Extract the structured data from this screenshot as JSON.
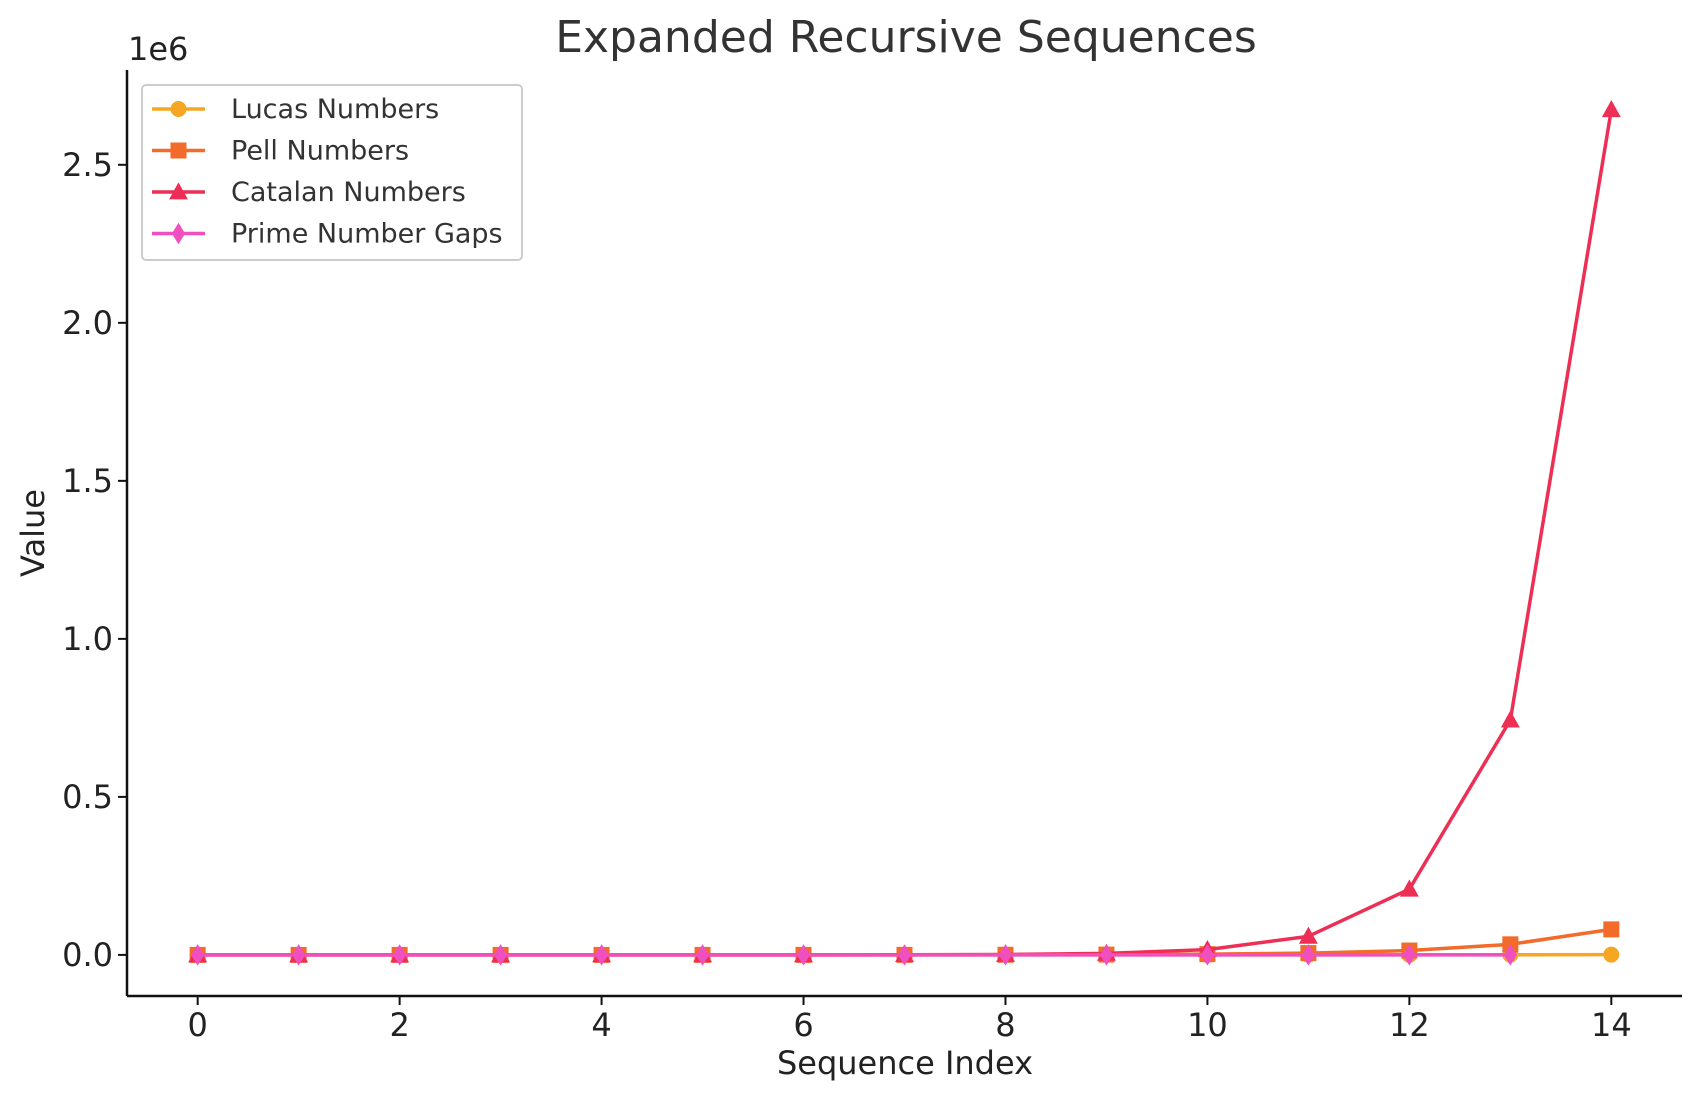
{
  "chart_data": {
    "type": "line",
    "title": "Expanded Recursive Sequences",
    "xlabel": "Sequence Index",
    "ylabel": "Value",
    "y_offset_label": "1e6",
    "xlim": [
      -0.7,
      14.7
    ],
    "ylim": [
      -130000,
      2800000
    ],
    "x_ticks": [
      0,
      2,
      4,
      6,
      8,
      10,
      12,
      14
    ],
    "y_ticks": [
      0,
      500000,
      1000000,
      1500000,
      2000000,
      2500000
    ],
    "y_tick_labels": [
      "0.0",
      "0.5",
      "1.0",
      "1.5",
      "2.0",
      "2.5"
    ],
    "grid": false,
    "legend_position": "top-left",
    "series": [
      {
        "name": "Lucas Numbers",
        "color": "#f5a623",
        "marker": "circle",
        "x": [
          0,
          1,
          2,
          3,
          4,
          5,
          6,
          7,
          8,
          9,
          10,
          11,
          12,
          13,
          14
        ],
        "values": [
          2,
          1,
          3,
          4,
          7,
          11,
          18,
          29,
          47,
          76,
          123,
          199,
          322,
          521,
          843
        ]
      },
      {
        "name": "Pell Numbers",
        "color": "#f26b2a",
        "marker": "square",
        "x": [
          0,
          1,
          2,
          3,
          4,
          5,
          6,
          7,
          8,
          9,
          10,
          11,
          12,
          13,
          14
        ],
        "values": [
          0,
          1,
          2,
          5,
          12,
          29,
          70,
          169,
          408,
          985,
          2378,
          5741,
          13860,
          33461,
          80782
        ]
      },
      {
        "name": "Catalan Numbers",
        "color": "#ee2f55",
        "marker": "triangle",
        "x": [
          0,
          1,
          2,
          3,
          4,
          5,
          6,
          7,
          8,
          9,
          10,
          11,
          12,
          13,
          14
        ],
        "values": [
          1,
          1,
          2,
          5,
          14,
          42,
          132,
          429,
          1430,
          4862,
          16796,
          58786,
          208012,
          742900,
          2674440
        ]
      },
      {
        "name": "Prime Number Gaps",
        "color": "#f04fbf",
        "marker": "diamond",
        "x": [
          0,
          1,
          2,
          3,
          4,
          5,
          6,
          7,
          8,
          9,
          10,
          11,
          12,
          13
        ],
        "values": [
          1,
          2,
          2,
          4,
          2,
          4,
          2,
          4,
          6,
          2,
          6,
          4,
          2,
          4
        ]
      }
    ]
  }
}
